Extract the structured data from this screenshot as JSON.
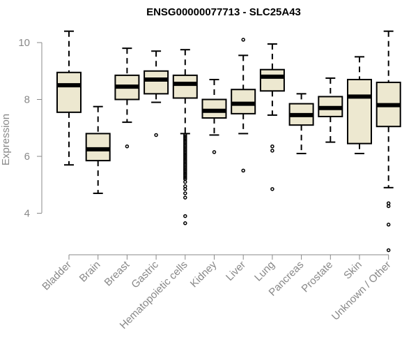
{
  "chart_data": {
    "type": "boxplot",
    "title": "ENSG00000077713 - SLC25A43",
    "xlabel": "",
    "ylabel": "Expression",
    "ylim": [
      2.7,
      10.5
    ],
    "yticks": [
      4,
      6,
      8,
      10
    ],
    "box_color": "#ede8d0",
    "categories": [
      "Bladder",
      "Brain",
      "Breast",
      "Gastric",
      "Hematopoietic cells",
      "Kidney",
      "Liver",
      "Lung",
      "Pancreas",
      "Prostate",
      "Skin",
      "Unknown / Other"
    ],
    "boxes": [
      {
        "name": "Bladder",
        "min": 5.7,
        "q1": 7.55,
        "median": 8.5,
        "q3": 8.95,
        "max": 10.4,
        "outliers": []
      },
      {
        "name": "Brain",
        "min": 4.7,
        "q1": 5.85,
        "median": 6.25,
        "q3": 6.8,
        "max": 7.75,
        "outliers": []
      },
      {
        "name": "Breast",
        "min": 7.2,
        "q1": 8.0,
        "median": 8.45,
        "q3": 8.85,
        "max": 9.8,
        "outliers": [
          6.35
        ]
      },
      {
        "name": "Gastric",
        "min": 7.9,
        "q1": 8.2,
        "median": 8.7,
        "q3": 9.0,
        "max": 9.7,
        "outliers": [
          6.75
        ]
      },
      {
        "name": "Hematopoietic cells",
        "min": 6.8,
        "q1": 8.05,
        "median": 8.55,
        "q3": 8.85,
        "max": 9.75,
        "outliers": [
          6.75,
          6.7,
          6.65,
          6.6,
          6.55,
          6.5,
          6.45,
          6.4,
          6.35,
          6.3,
          6.25,
          6.2,
          6.15,
          6.1,
          6.05,
          6.0,
          5.95,
          5.9,
          5.85,
          5.8,
          5.75,
          5.7,
          5.65,
          5.6,
          5.55,
          5.5,
          5.45,
          5.4,
          5.35,
          5.3,
          5.25,
          5.2,
          5.1,
          4.95,
          4.85,
          4.7,
          4.55,
          3.9,
          3.65
        ]
      },
      {
        "name": "Kidney",
        "min": 6.75,
        "q1": 7.35,
        "median": 7.6,
        "q3": 8.0,
        "max": 8.7,
        "outliers": [
          6.15
        ]
      },
      {
        "name": "Liver",
        "min": 6.8,
        "q1": 7.5,
        "median": 7.85,
        "q3": 8.35,
        "max": 9.55,
        "outliers": [
          10.1,
          5.5
        ]
      },
      {
        "name": "Lung",
        "min": 7.45,
        "q1": 8.3,
        "median": 8.8,
        "q3": 9.05,
        "max": 9.95,
        "outliers": [
          6.35,
          6.2,
          4.85
        ]
      },
      {
        "name": "Pancreas",
        "min": 6.1,
        "q1": 7.1,
        "median": 7.45,
        "q3": 7.85,
        "max": 8.2,
        "outliers": []
      },
      {
        "name": "Prostate",
        "min": 6.5,
        "q1": 7.4,
        "median": 7.7,
        "q3": 8.1,
        "max": 8.75,
        "outliers": []
      },
      {
        "name": "Skin",
        "min": 6.1,
        "q1": 6.45,
        "median": 8.1,
        "q3": 8.7,
        "max": 9.5,
        "outliers": []
      },
      {
        "name": "Unknown / Other",
        "min": 4.9,
        "q1": 7.05,
        "median": 7.8,
        "q3": 8.6,
        "max": 10.4,
        "outliers": [
          4.35,
          4.25,
          3.6,
          2.7
        ]
      }
    ]
  }
}
